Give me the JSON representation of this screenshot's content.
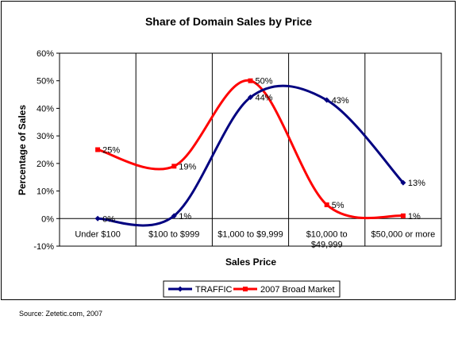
{
  "chart_data": {
    "type": "line",
    "title": "Share of Domain Sales by Price",
    "xlabel": "Sales Price",
    "ylabel": "Percentage of Sales",
    "categories": [
      "Under $100",
      "$100 to $999",
      "$1,000 to $9,999",
      "$10,000 to\n$49,999",
      "$50,000 or more"
    ],
    "ylim": [
      -10,
      60
    ],
    "yticks": [
      -10,
      0,
      10,
      20,
      30,
      40,
      50,
      60
    ],
    "ytick_labels": [
      "-10%",
      "0%",
      "10%",
      "20%",
      "30%",
      "40%",
      "50%",
      "60%"
    ],
    "series": [
      {
        "name": "TRAFFIC",
        "values": [
          0,
          1,
          44,
          43,
          13
        ],
        "labels": [
          "0%",
          "1%",
          "44%",
          "43%",
          "13%"
        ],
        "color": "#000080"
      },
      {
        "name": "2007 Broad Market",
        "values": [
          25,
          19,
          50,
          5,
          1
        ],
        "labels": [
          "25%",
          "19%",
          "50%",
          "5%",
          "1%"
        ],
        "color": "#ff0000"
      }
    ],
    "legend_position": "bottom",
    "grid": "vertical category dividers",
    "smoothed": true
  },
  "source_note": "Source: Zetetic.com, 2007"
}
